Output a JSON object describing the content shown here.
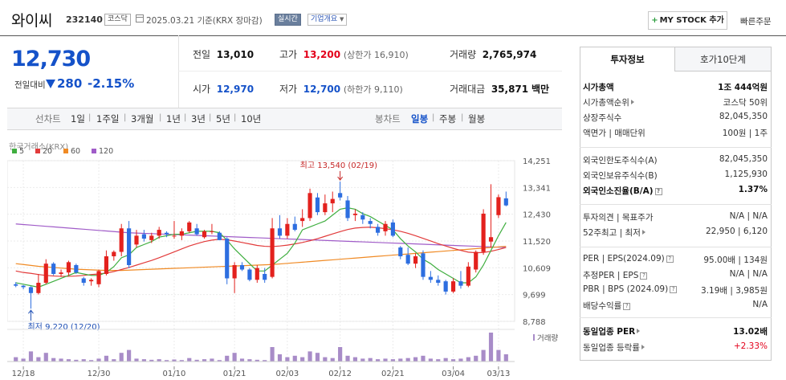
{
  "header": {
    "title": "와이씨",
    "code": "232140",
    "market": "코스닥",
    "date": "2025.03.21 기준(KRX 장마감)",
    "realtime_label": "실시간",
    "overview_label": "기업개요",
    "mystock_label": "MY STOCK 추가",
    "quick_order_label": "빠른주문"
  },
  "price": {
    "current": "12,730",
    "change_label": "전일대비",
    "change": "280",
    "change_pct": "-2.15%"
  },
  "quote": {
    "prev_close_label": "전일",
    "prev_close": "13,010",
    "high_label": "고가",
    "high": "13,200",
    "upper_limit": "(상한가 16,910)",
    "volume_label": "거래량",
    "volume": "2,765,974",
    "open_label": "시가",
    "open": "12,970",
    "low_label": "저가",
    "low": "12,700",
    "lower_limit": "(하한가 9,110)",
    "amount_label": "거래대금",
    "amount": "35,871",
    "amount_unit": "백만"
  },
  "periods": {
    "line_label": "선차트",
    "items": [
      "1일",
      "1주일",
      "3개월",
      "1년",
      "3년",
      "5년",
      "10년"
    ],
    "candle_label": "봉차트",
    "candle_items": [
      "일봉",
      "주봉",
      "월봉"
    ],
    "active_candle": "일봉"
  },
  "chart_data": {
    "type": "candlestick",
    "source_label": "한국거래소(KRX)",
    "ma_legend": [
      {
        "name": "5",
        "color": "#3fae3f"
      },
      {
        "name": "20",
        "color": "#e23b3b"
      },
      {
        "name": "60",
        "color": "#f08a24"
      },
      {
        "name": "120",
        "color": "#a05cc8"
      }
    ],
    "y_ticks": [
      "14,251",
      "13,341",
      "12,430",
      "11,520",
      "10,609",
      "9,699",
      "8,788"
    ],
    "x_ticks": [
      "12/18",
      "12/30",
      "01/10",
      "01/21",
      "02/03",
      "02/12",
      "02/21",
      "03/04",
      "03/13"
    ],
    "ylim": [
      8788,
      14251
    ],
    "annotation_high": "최고 13,540 (02/19)",
    "annotation_low": "최저 9,220 (12/20)",
    "volume_label": "거래량",
    "up_color": "#e3211d",
    "down_color": "#2d6ee0",
    "candles": [
      {
        "o": 10050,
        "h": 10120,
        "l": 9950,
        "c": 10000
      },
      {
        "o": 10000,
        "h": 10020,
        "l": 9880,
        "c": 9950
      },
      {
        "o": 9950,
        "h": 9980,
        "l": 9220,
        "c": 9750
      },
      {
        "o": 9750,
        "h": 10400,
        "l": 9700,
        "c": 10100
      },
      {
        "o": 10100,
        "h": 10900,
        "l": 10050,
        "c": 10750
      },
      {
        "o": 10750,
        "h": 10800,
        "l": 10350,
        "c": 10400
      },
      {
        "o": 10400,
        "h": 10550,
        "l": 10300,
        "c": 10450
      },
      {
        "o": 10450,
        "h": 10850,
        "l": 10350,
        "c": 10800
      },
      {
        "o": 10700,
        "h": 10750,
        "l": 10400,
        "c": 10450
      },
      {
        "o": 10250,
        "h": 10300,
        "l": 10000,
        "c": 10100
      },
      {
        "o": 10150,
        "h": 10250,
        "l": 10000,
        "c": 10200
      },
      {
        "o": 10050,
        "h": 10550,
        "l": 9950,
        "c": 10500
      },
      {
        "o": 10400,
        "h": 11200,
        "l": 10350,
        "c": 11000
      },
      {
        "o": 11000,
        "h": 11200,
        "l": 10850,
        "c": 11150
      },
      {
        "o": 11150,
        "h": 12100,
        "l": 11000,
        "c": 11950
      },
      {
        "o": 11950,
        "h": 12200,
        "l": 10600,
        "c": 10700
      },
      {
        "o": 11400,
        "h": 11900,
        "l": 11300,
        "c": 11700
      },
      {
        "o": 11750,
        "h": 11900,
        "l": 11500,
        "c": 11600
      },
      {
        "o": 11550,
        "h": 11800,
        "l": 11450,
        "c": 11700
      },
      {
        "o": 11700,
        "h": 12000,
        "l": 11600,
        "c": 11900
      },
      {
        "o": 11800,
        "h": 11850,
        "l": 11650,
        "c": 11750
      },
      {
        "o": 11700,
        "h": 12200,
        "l": 11600,
        "c": 11700
      },
      {
        "o": 11700,
        "h": 11950,
        "l": 11550,
        "c": 11850
      },
      {
        "o": 11850,
        "h": 12200,
        "l": 11800,
        "c": 12150
      },
      {
        "o": 11950,
        "h": 12100,
        "l": 11700,
        "c": 11750
      },
      {
        "o": 11650,
        "h": 11900,
        "l": 11600,
        "c": 11850
      },
      {
        "o": 11850,
        "h": 12100,
        "l": 11750,
        "c": 11850
      },
      {
        "o": 11800,
        "h": 11850,
        "l": 11550,
        "c": 11550
      },
      {
        "o": 11600,
        "h": 11650,
        "l": 10050,
        "c": 10250
      },
      {
        "o": 10250,
        "h": 10800,
        "l": 9750,
        "c": 10700
      },
      {
        "o": 10700,
        "h": 10800,
        "l": 10500,
        "c": 10550
      },
      {
        "o": 10550,
        "h": 10600,
        "l": 10150,
        "c": 10200
      },
      {
        "o": 10200,
        "h": 10700,
        "l": 10100,
        "c": 10600
      },
      {
        "o": 10400,
        "h": 10600,
        "l": 10100,
        "c": 10200
      },
      {
        "o": 10300,
        "h": 12300,
        "l": 10250,
        "c": 11950
      },
      {
        "o": 11950,
        "h": 12400,
        "l": 11600,
        "c": 11700
      },
      {
        "o": 11700,
        "h": 12300,
        "l": 11600,
        "c": 12100
      },
      {
        "o": 12100,
        "h": 12350,
        "l": 11850,
        "c": 11900
      },
      {
        "o": 12200,
        "h": 12600,
        "l": 12000,
        "c": 12300
      },
      {
        "o": 12300,
        "h": 13300,
        "l": 12200,
        "c": 13150
      },
      {
        "o": 13000,
        "h": 13150,
        "l": 12400,
        "c": 12500
      },
      {
        "o": 12500,
        "h": 13100,
        "l": 12400,
        "c": 12800
      },
      {
        "o": 12800,
        "h": 13200,
        "l": 12500,
        "c": 12950
      },
      {
        "o": 13150,
        "h": 13540,
        "l": 12900,
        "c": 13000
      },
      {
        "o": 12900,
        "h": 13050,
        "l": 12200,
        "c": 12300
      },
      {
        "o": 12400,
        "h": 12600,
        "l": 12200,
        "c": 12450
      },
      {
        "o": 12400,
        "h": 12500,
        "l": 12100,
        "c": 12250
      },
      {
        "o": 12200,
        "h": 12300,
        "l": 11950,
        "c": 12100
      },
      {
        "o": 12000,
        "h": 12100,
        "l": 11700,
        "c": 11800
      },
      {
        "o": 11850,
        "h": 12200,
        "l": 11700,
        "c": 12100
      },
      {
        "o": 12150,
        "h": 12250,
        "l": 11650,
        "c": 11700
      },
      {
        "o": 11300,
        "h": 11350,
        "l": 10900,
        "c": 11000
      },
      {
        "o": 11050,
        "h": 11300,
        "l": 10700,
        "c": 10750
      },
      {
        "o": 10750,
        "h": 11100,
        "l": 10600,
        "c": 11000
      },
      {
        "o": 11100,
        "h": 11200,
        "l": 10200,
        "c": 10300
      },
      {
        "o": 10300,
        "h": 10500,
        "l": 10100,
        "c": 10200
      },
      {
        "o": 10200,
        "h": 10350,
        "l": 10000,
        "c": 10100
      },
      {
        "o": 10150,
        "h": 10200,
        "l": 9700,
        "c": 9800
      },
      {
        "o": 9800,
        "h": 10250,
        "l": 9750,
        "c": 10150
      },
      {
        "o": 10150,
        "h": 10500,
        "l": 9900,
        "c": 10000
      },
      {
        "o": 10000,
        "h": 10800,
        "l": 9950,
        "c": 10650
      },
      {
        "o": 10550,
        "h": 11200,
        "l": 10450,
        "c": 11150
      },
      {
        "o": 11150,
        "h": 12600,
        "l": 11050,
        "c": 12450
      },
      {
        "o": 11500,
        "h": 13450,
        "l": 11300,
        "c": 11650
      },
      {
        "o": 12400,
        "h": 13100,
        "l": 12300,
        "c": 13010
      },
      {
        "o": 12970,
        "h": 13200,
        "l": 12700,
        "c": 12730
      }
    ],
    "ma5": [
      10100,
      10050,
      10000,
      9950,
      10050,
      10150,
      10250,
      10350,
      10450,
      10400,
      10350,
      10350,
      10450,
      10650,
      10950,
      11050,
      11300,
      11400,
      11500,
      11650,
      11700,
      11750,
      11750,
      11800,
      11850,
      11850,
      11850,
      11800,
      11550,
      11250,
      11000,
      10750,
      10500,
      10500,
      10700,
      10900,
      11100,
      11450,
      11900,
      12000,
      12100,
      12200,
      12400,
      12600,
      12650,
      12600,
      12450,
      12350,
      12200,
      12050,
      11900,
      11600,
      11350,
      11150,
      10900,
      10750,
      10550,
      10400,
      10250,
      10100,
      10100,
      10300,
      10700,
      11200,
      11700,
      12150
    ],
    "ma20": [
      10500,
      10450,
      10420,
      10380,
      10350,
      10330,
      10320,
      10320,
      10330,
      10350,
      10380,
      10400,
      10430,
      10480,
      10550,
      10620,
      10700,
      10780,
      10860,
      10950,
      11050,
      11150,
      11250,
      11350,
      11430,
      11500,
      11550,
      11580,
      11560,
      11520,
      11470,
      11420,
      11370,
      11340,
      11330,
      11350,
      11380,
      11420,
      11470,
      11530,
      11600,
      11680,
      11760,
      11840,
      11910,
      11960,
      11980,
      11990,
      11970,
      11940,
      11900,
      11850,
      11780,
      11700,
      11610,
      11520,
      11430,
      11350,
      11270,
      11200,
      11140,
      11120,
      11130,
      11170,
      11230,
      11300
    ],
    "ma60": [
      10750,
      10720,
      10690,
      10660,
      10640,
      10620,
      10600,
      10580,
      10560,
      10550,
      10540,
      10530,
      10520,
      10520,
      10520,
      10530,
      10540,
      10550,
      10560,
      10570,
      10580,
      10590,
      10600,
      10610,
      10620,
      10630,
      10640,
      10650,
      10660,
      10670,
      10680,
      10690,
      10700,
      10710,
      10720,
      10740,
      10760,
      10780,
      10800,
      10820,
      10840,
      10860,
      10880,
      10900,
      10920,
      10940,
      10960,
      10980,
      11000,
      11020,
      11040,
      11060,
      11080,
      11100,
      11120,
      11140,
      11160,
      11180,
      11200,
      11220,
      11240,
      11260,
      11280,
      11300,
      11320,
      11340
    ],
    "ma120": [
      12100,
      12080,
      12060,
      12040,
      12020,
      12000,
      11980,
      11960,
      11940,
      11920,
      11900,
      11880,
      11860,
      11840,
      11820,
      11800,
      11790,
      11780,
      11770,
      11760,
      11750,
      11740,
      11730,
      11720,
      11710,
      11700,
      11690,
      11680,
      11670,
      11660,
      11650,
      11640,
      11630,
      11620,
      11610,
      11600,
      11590,
      11580,
      11570,
      11560,
      11550,
      11540,
      11530,
      11520,
      11510,
      11500,
      11490,
      11480,
      11470,
      11460,
      11450,
      11440,
      11430,
      11420,
      11410,
      11400,
      11390,
      11380,
      11370,
      11360,
      11350,
      11340,
      11330,
      11320,
      11310,
      11300
    ],
    "volumes": [
      0.15,
      0.1,
      0.35,
      0.15,
      0.3,
      0.12,
      0.1,
      0.08,
      0.06,
      0.08,
      0.05,
      0.1,
      0.2,
      0.08,
      0.3,
      0.4,
      0.1,
      0.08,
      0.06,
      0.08,
      0.05,
      0.07,
      0.05,
      0.12,
      0.06,
      0.08,
      0.1,
      0.05,
      0.2,
      0.3,
      0.1,
      0.08,
      0.06,
      0.05,
      0.5,
      0.25,
      0.15,
      0.2,
      0.15,
      0.35,
      0.3,
      0.15,
      0.12,
      0.5,
      0.2,
      0.15,
      0.1,
      0.12,
      0.08,
      0.1,
      0.08,
      0.1,
      0.12,
      0.15,
      0.2,
      0.1,
      0.08,
      0.12,
      0.08,
      0.1,
      0.15,
      0.2,
      0.4,
      1.0,
      0.4,
      0.25
    ]
  },
  "invest_panel": {
    "tab_active": "투자정보",
    "tab_other": "호가10단계",
    "rows1": [
      {
        "label": "시가총액",
        "value": "1조 444억원",
        "bold": true
      },
      {
        "label": "시가총액순위",
        "value": "코스닥 50위"
      },
      {
        "label": "상장주식수",
        "value": "82,045,350"
      },
      {
        "label": "액면가 | 매매단위",
        "value": "100원 | 1주"
      }
    ],
    "rows2": [
      {
        "label": "외국인한도주식수(A)",
        "value": "82,045,350"
      },
      {
        "label": "외국인보유주식수(B)",
        "value": "1,125,930"
      },
      {
        "label": "외국인소진율(B/A)",
        "value": "1.37%",
        "bold": true
      }
    ],
    "rows3": [
      {
        "label": "투자의견 | 목표주가",
        "value": "N/A | N/A"
      },
      {
        "label": "52주최고 | 최저",
        "value": "22,950 | 6,120"
      }
    ],
    "rows4": [
      {
        "label": "PER | EPS(2024.09)",
        "value": "95.00배 | 134원"
      },
      {
        "label": "추정PER | EPS",
        "value": "N/A | N/A"
      },
      {
        "label": "PBR | BPS (2024.09)",
        "value": "3.19배 | 3,985원"
      },
      {
        "label": "배당수익률",
        "value": "N/A"
      }
    ],
    "rows5": [
      {
        "label": "동일업종 PER",
        "value": "13.02배",
        "bold": true
      },
      {
        "label": "동일업종 등락률",
        "value": "+2.33%"
      }
    ]
  }
}
